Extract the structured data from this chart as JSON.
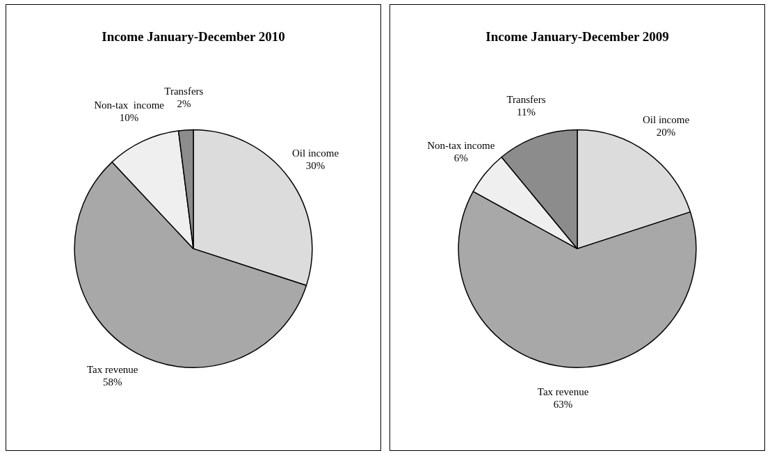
{
  "chart_data": [
    {
      "type": "pie",
      "title": "Income January-December 2010",
      "categories": [
        "Oil income",
        "Tax revenue",
        "Non-tax  income",
        "Transfers"
      ],
      "values": [
        30,
        58,
        10,
        2
      ],
      "colors": [
        "#dcdcdc",
        "#a8a8a8",
        "#efefef",
        "#8c8c8c"
      ],
      "value_labels": [
        "30%",
        "58%",
        "10%",
        "2%"
      ]
    },
    {
      "type": "pie",
      "title": "Income January-December 2009",
      "categories": [
        "Oil income",
        "Tax revenue",
        "Non-tax income",
        "Transfers"
      ],
      "values": [
        20,
        63,
        6,
        11
      ],
      "colors": [
        "#dcdcdc",
        "#a8a8a8",
        "#efefef",
        "#8c8c8c"
      ],
      "value_labels": [
        "20%",
        "63%",
        "6%",
        "11%"
      ]
    }
  ]
}
